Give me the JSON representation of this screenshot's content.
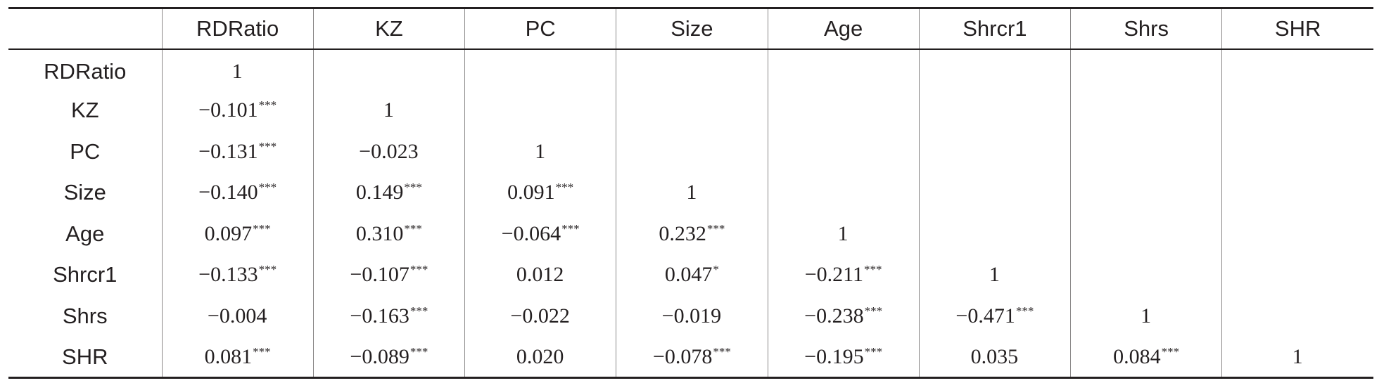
{
  "table": {
    "columns": [
      "",
      "RDRatio",
      "KZ",
      "PC",
      "Size",
      "Age",
      "Shrcr1",
      "Shrs",
      "SHR"
    ],
    "rows": [
      {
        "label": "RDRatio",
        "cells": [
          {
            "v": "1",
            "s": ""
          },
          {
            "v": "",
            "s": ""
          },
          {
            "v": "",
            "s": ""
          },
          {
            "v": "",
            "s": ""
          },
          {
            "v": "",
            "s": ""
          },
          {
            "v": "",
            "s": ""
          },
          {
            "v": "",
            "s": ""
          },
          {
            "v": "",
            "s": ""
          }
        ]
      },
      {
        "label": "KZ",
        "cells": [
          {
            "v": "−0.101",
            "s": "***"
          },
          {
            "v": "1",
            "s": ""
          },
          {
            "v": "",
            "s": ""
          },
          {
            "v": "",
            "s": ""
          },
          {
            "v": "",
            "s": ""
          },
          {
            "v": "",
            "s": ""
          },
          {
            "v": "",
            "s": ""
          },
          {
            "v": "",
            "s": ""
          }
        ]
      },
      {
        "label": "PC",
        "cells": [
          {
            "v": "−0.131",
            "s": "***"
          },
          {
            "v": "−0.023",
            "s": ""
          },
          {
            "v": "1",
            "s": ""
          },
          {
            "v": "",
            "s": ""
          },
          {
            "v": "",
            "s": ""
          },
          {
            "v": "",
            "s": ""
          },
          {
            "v": "",
            "s": ""
          },
          {
            "v": "",
            "s": ""
          }
        ]
      },
      {
        "label": "Size",
        "cells": [
          {
            "v": "−0.140",
            "s": "***"
          },
          {
            "v": "0.149",
            "s": "***"
          },
          {
            "v": "0.091",
            "s": "***"
          },
          {
            "v": "1",
            "s": ""
          },
          {
            "v": "",
            "s": ""
          },
          {
            "v": "",
            "s": ""
          },
          {
            "v": "",
            "s": ""
          },
          {
            "v": "",
            "s": ""
          }
        ]
      },
      {
        "label": "Age",
        "cells": [
          {
            "v": "0.097",
            "s": "***"
          },
          {
            "v": "0.310",
            "s": "***"
          },
          {
            "v": "−0.064",
            "s": "***"
          },
          {
            "v": "0.232",
            "s": "***"
          },
          {
            "v": "1",
            "s": ""
          },
          {
            "v": "",
            "s": ""
          },
          {
            "v": "",
            "s": ""
          },
          {
            "v": "",
            "s": ""
          }
        ]
      },
      {
        "label": "Shrcr1",
        "cells": [
          {
            "v": "−0.133",
            "s": "***"
          },
          {
            "v": "−0.107",
            "s": "***"
          },
          {
            "v": "0.012",
            "s": ""
          },
          {
            "v": "0.047",
            "s": "*"
          },
          {
            "v": "−0.211",
            "s": "***"
          },
          {
            "v": "1",
            "s": ""
          },
          {
            "v": "",
            "s": ""
          },
          {
            "v": "",
            "s": ""
          }
        ]
      },
      {
        "label": "Shrs",
        "cells": [
          {
            "v": "−0.004",
            "s": ""
          },
          {
            "v": "−0.163",
            "s": "***"
          },
          {
            "v": "−0.022",
            "s": ""
          },
          {
            "v": "−0.019",
            "s": ""
          },
          {
            "v": "−0.238",
            "s": "***"
          },
          {
            "v": "−0.471",
            "s": "***"
          },
          {
            "v": "1",
            "s": ""
          },
          {
            "v": "",
            "s": ""
          }
        ]
      },
      {
        "label": "SHR",
        "cells": [
          {
            "v": "0.081",
            "s": "***"
          },
          {
            "v": "−0.089",
            "s": "***"
          },
          {
            "v": "0.020",
            "s": ""
          },
          {
            "v": "−0.078",
            "s": "***"
          },
          {
            "v": "−0.195",
            "s": "***"
          },
          {
            "v": "0.035",
            "s": ""
          },
          {
            "v": "0.084",
            "s": "***"
          },
          {
            "v": "1",
            "s": ""
          }
        ]
      }
    ]
  }
}
